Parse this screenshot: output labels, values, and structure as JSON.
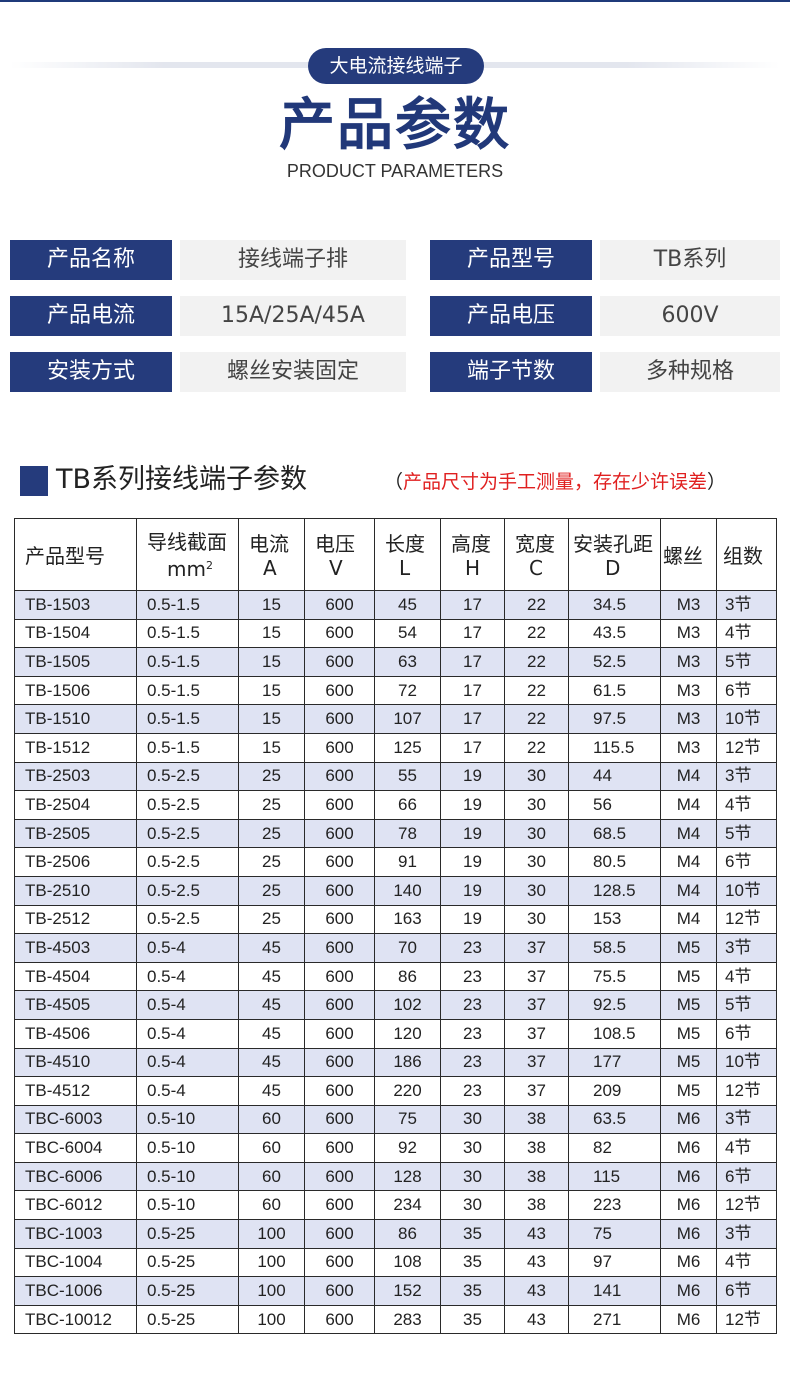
{
  "header": {
    "badge": "大电流接线端子",
    "title": "产品参数",
    "subtitle": "PRODUCT PARAMETERS"
  },
  "specs": [
    {
      "label": "产品名称",
      "value": "接线端子排",
      "label2": "产品型号",
      "value2": "TB系列"
    },
    {
      "label": "产品电流",
      "value": "15A/25A/45A",
      "label2": "产品电压",
      "value2": "600V"
    },
    {
      "label": "安装方式",
      "value": "螺丝安装固定",
      "label2": "端子节数",
      "value2": "多种规格"
    }
  ],
  "section": {
    "title": "TB系列接线端子参数",
    "note_open": "（",
    "note": "产品尺寸为手工测量，存在少许误差",
    "note_close": "）"
  },
  "table": {
    "headers": [
      {
        "line1": "产品型号",
        "line2": ""
      },
      {
        "line1": "导线截面",
        "line2": "mm",
        "sup": "2"
      },
      {
        "line1": "电流",
        "line2": "A"
      },
      {
        "line1": "电压",
        "line2": "V"
      },
      {
        "line1": "长度",
        "line2": "L"
      },
      {
        "line1": "高度",
        "line2": "H"
      },
      {
        "line1": "宽度",
        "line2": "C"
      },
      {
        "line1": "安装孔距",
        "line2": "D"
      },
      {
        "line1": "螺丝",
        "line2": ""
      },
      {
        "line1": "组数",
        "line2": ""
      }
    ],
    "rows": [
      [
        "TB-1503",
        "0.5-1.5",
        "15",
        "600",
        "45",
        "17",
        "22",
        "34.5",
        "M3",
        "3节"
      ],
      [
        "TB-1504",
        "0.5-1.5",
        "15",
        "600",
        "54",
        "17",
        "22",
        "43.5",
        "M3",
        "4节"
      ],
      [
        "TB-1505",
        "0.5-1.5",
        "15",
        "600",
        "63",
        "17",
        "22",
        "52.5",
        "M3",
        "5节"
      ],
      [
        "TB-1506",
        "0.5-1.5",
        "15",
        "600",
        "72",
        "17",
        "22",
        "61.5",
        "M3",
        "6节"
      ],
      [
        "TB-1510",
        "0.5-1.5",
        "15",
        "600",
        "107",
        "17",
        "22",
        "97.5",
        "M3",
        "10节"
      ],
      [
        "TB-1512",
        "0.5-1.5",
        "15",
        "600",
        "125",
        "17",
        "22",
        "115.5",
        "M3",
        "12节"
      ],
      [
        "TB-2503",
        "0.5-2.5",
        "25",
        "600",
        "55",
        "19",
        "30",
        "44",
        "M4",
        "3节"
      ],
      [
        "TB-2504",
        "0.5-2.5",
        "25",
        "600",
        "66",
        "19",
        "30",
        "56",
        "M4",
        "4节"
      ],
      [
        "TB-2505",
        "0.5-2.5",
        "25",
        "600",
        "78",
        "19",
        "30",
        "68.5",
        "M4",
        "5节"
      ],
      [
        "TB-2506",
        "0.5-2.5",
        "25",
        "600",
        "91",
        "19",
        "30",
        "80.5",
        "M4",
        "6节"
      ],
      [
        "TB-2510",
        "0.5-2.5",
        "25",
        "600",
        "140",
        "19",
        "30",
        "128.5",
        "M4",
        "10节"
      ],
      [
        "TB-2512",
        "0.5-2.5",
        "25",
        "600",
        "163",
        "19",
        "30",
        "153",
        "M4",
        "12节"
      ],
      [
        "TB-4503",
        "0.5-4",
        "45",
        "600",
        "70",
        "23",
        "37",
        "58.5",
        "M5",
        "3节"
      ],
      [
        "TB-4504",
        "0.5-4",
        "45",
        "600",
        "86",
        "23",
        "37",
        "75.5",
        "M5",
        "4节"
      ],
      [
        "TB-4505",
        "0.5-4",
        "45",
        "600",
        "102",
        "23",
        "37",
        "92.5",
        "M5",
        "5节"
      ],
      [
        "TB-4506",
        "0.5-4",
        "45",
        "600",
        "120",
        "23",
        "37",
        "108.5",
        "M5",
        "6节"
      ],
      [
        "TB-4510",
        "0.5-4",
        "45",
        "600",
        "186",
        "23",
        "37",
        "177",
        "M5",
        "10节"
      ],
      [
        "TB-4512",
        "0.5-4",
        "45",
        "600",
        "220",
        "23",
        "37",
        "209",
        "M5",
        "12节"
      ],
      [
        "TBC-6003",
        "0.5-10",
        "60",
        "600",
        "75",
        "30",
        "38",
        "63.5",
        "M6",
        "3节"
      ],
      [
        "TBC-6004",
        "0.5-10",
        "60",
        "600",
        "92",
        "30",
        "38",
        "82",
        "M6",
        "4节"
      ],
      [
        "TBC-6006",
        "0.5-10",
        "60",
        "600",
        "128",
        "30",
        "38",
        "115",
        "M6",
        "6节"
      ],
      [
        "TBC-6012",
        "0.5-10",
        "60",
        "600",
        "234",
        "30",
        "38",
        "223",
        "M6",
        "12节"
      ],
      [
        "TBC-1003",
        "0.5-25",
        "100",
        "600",
        "86",
        "35",
        "43",
        "75",
        "M6",
        "3节"
      ],
      [
        "TBC-1004",
        "0.5-25",
        "100",
        "600",
        "108",
        "35",
        "43",
        "97",
        "M6",
        "4节"
      ],
      [
        "TBC-1006",
        "0.5-25",
        "100",
        "600",
        "152",
        "35",
        "43",
        "141",
        "M6",
        "6节"
      ],
      [
        "TBC-10012",
        "0.5-25",
        "100",
        "600",
        "283",
        "35",
        "43",
        "271",
        "M6",
        "12节"
      ]
    ]
  }
}
